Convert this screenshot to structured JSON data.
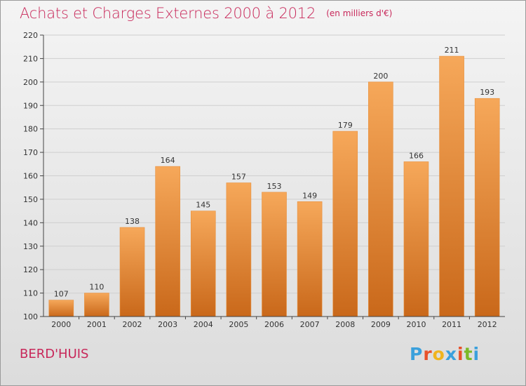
{
  "header": {
    "title": "Achats et Charges Externes 2000 à 2012",
    "unit": "(en milliers d'€)"
  },
  "footer": {
    "place": "BERD'HUIS",
    "logo_text": "Proxiti"
  },
  "colors": {
    "title": "#c8285a",
    "bar_top": "#f6a85a",
    "bar_bottom": "#c9681a",
    "logo": [
      "#3aa0dc",
      "#e8512a",
      "#f0b41e",
      "#3aa0dc",
      "#e8512a",
      "#7cb928",
      "#3aa0dc"
    ]
  },
  "chart_data": {
    "type": "bar",
    "title": "Achats et Charges Externes 2000 à 2012",
    "categories": [
      "2000",
      "2001",
      "2002",
      "2003",
      "2004",
      "2005",
      "2006",
      "2007",
      "2008",
      "2009",
      "2010",
      "2011",
      "2012"
    ],
    "values": [
      107,
      110,
      138,
      164,
      145,
      157,
      153,
      149,
      179,
      200,
      166,
      211,
      193
    ],
    "ylim": [
      100,
      220
    ],
    "yticks": [
      100,
      110,
      120,
      130,
      140,
      150,
      160,
      170,
      180,
      190,
      200,
      210,
      220
    ],
    "grid": true,
    "data_labels": true
  }
}
